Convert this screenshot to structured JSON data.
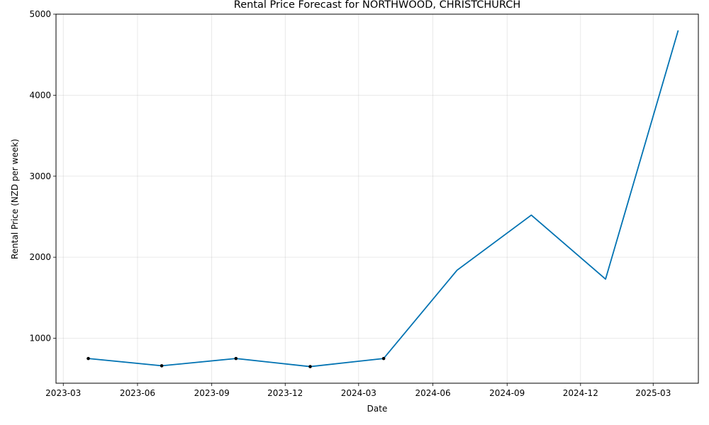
{
  "chart_data": {
    "type": "line",
    "title": "Rental Price Forecast for NORTHWOOD, CHRISTCHURCH",
    "xlabel": "Date",
    "ylabel": "Rental Price (NZD per week)",
    "x_tick_labels": [
      "2023-03",
      "2023-06",
      "2023-09",
      "2023-12",
      "2024-03",
      "2024-06",
      "2024-09",
      "2024-12",
      "2025-03"
    ],
    "x_ticks": [
      "2023-03-01",
      "2023-06-01",
      "2023-09-01",
      "2023-12-01",
      "2024-03-01",
      "2024-06-01",
      "2024-09-01",
      "2024-12-01",
      "2025-03-01"
    ],
    "y_ticks": [
      1000,
      2000,
      3000,
      4000,
      5000
    ],
    "xlim": [
      "2023-02-20",
      "2025-04-26"
    ],
    "ylim": [
      445,
      5000
    ],
    "grid": true,
    "series": [
      {
        "color": "#0072B2",
        "x": [
          "2023-04-01",
          "2023-07-01",
          "2023-10-01",
          "2024-01-01",
          "2024-04-01",
          "2024-07-01",
          "2024-10-01",
          "2025-01-01",
          "2025-04-01"
        ],
        "values": [
          750,
          660,
          750,
          650,
          750,
          1840,
          2520,
          1730,
          4800
        ]
      }
    ],
    "observed_points": {
      "color": "#000000",
      "x": [
        "2023-04-01",
        "2023-07-01",
        "2023-10-01",
        "2024-01-01",
        "2024-04-01"
      ],
      "values": [
        750,
        660,
        750,
        650,
        750
      ]
    }
  }
}
